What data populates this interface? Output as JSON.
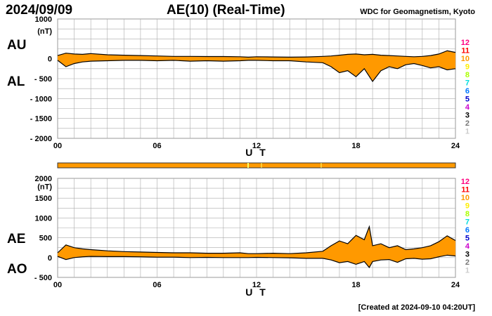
{
  "header": {
    "date": "2024/09/09",
    "title": "AE(10) (Real-Time)",
    "org": "WDC for Geomagnetism, Kyoto",
    "created": "[Created at 2024-09-10 04:20UT]"
  },
  "legend": {
    "items": [
      "12",
      "11",
      "10",
      "9",
      "8",
      "7",
      "6",
      "5",
      "4",
      "3",
      "2",
      "1"
    ],
    "colors": [
      "#ff0080",
      "#ff0000",
      "#ff9900",
      "#ffee00",
      "#aaff00",
      "#00dddd",
      "#0077ff",
      "#0000cc",
      "#cc00cc",
      "#000000",
      "#777777",
      "#cccccc"
    ]
  },
  "chart_data": [
    {
      "type": "area",
      "id": "au_al",
      "ylabel_unit": "(nT)",
      "ylim": [
        -2000,
        1000
      ],
      "yticks": [
        "1000",
        "(nT)",
        "0",
        "- 500",
        "- 1000",
        "- 1500",
        "- 2000"
      ],
      "xlim": [
        0,
        24
      ],
      "xticks": [
        "00",
        "06",
        "12",
        "18",
        "24"
      ],
      "xlabel": "U T",
      "upper_label": "AU",
      "lower_label": "AL",
      "fill_color": "#ff9900",
      "series": [
        {
          "name": "AU",
          "x": [
            0,
            0.5,
            1,
            1.5,
            2,
            3,
            4,
            5,
            6,
            7,
            8,
            9,
            10,
            11,
            11.5,
            12,
            13,
            14,
            15,
            16,
            16.5,
            17,
            17.5,
            18,
            18.5,
            19,
            19.5,
            20,
            20.5,
            21,
            21.5,
            22,
            22.5,
            23,
            23.5,
            24
          ],
          "y": [
            80,
            140,
            120,
            110,
            130,
            100,
            90,
            80,
            70,
            60,
            60,
            55,
            55,
            50,
            40,
            50,
            45,
            40,
            45,
            60,
            70,
            90,
            110,
            120,
            100,
            110,
            90,
            80,
            70,
            60,
            50,
            60,
            80,
            120,
            200,
            160
          ]
        },
        {
          "name": "AL",
          "x": [
            0,
            0.5,
            1,
            1.5,
            2,
            3,
            4,
            5,
            6,
            7,
            8,
            9,
            10,
            11,
            11.5,
            12,
            13,
            14,
            15,
            16,
            16.5,
            17,
            17.5,
            18,
            18.5,
            19,
            19.5,
            20,
            20.5,
            21,
            21.5,
            22,
            22.5,
            23,
            23.5,
            24
          ],
          "y": [
            -40,
            -200,
            -120,
            -80,
            -60,
            -50,
            -40,
            -40,
            -50,
            -40,
            -60,
            -50,
            -60,
            -50,
            -40,
            -40,
            -50,
            -50,
            -80,
            -100,
            -200,
            -350,
            -300,
            -450,
            -250,
            -570,
            -300,
            -200,
            -250,
            -150,
            -120,
            -170,
            -230,
            -200,
            -280,
            -250
          ]
        }
      ]
    },
    {
      "type": "area",
      "id": "ae_ao",
      "ylabel_unit": "(nT)",
      "ylim": [
        -500,
        2000
      ],
      "yticks": [
        "2000",
        "(nT)",
        "1500",
        "1000",
        "500",
        "0",
        "- 500"
      ],
      "xlim": [
        0,
        24
      ],
      "xticks": [
        "00",
        "06",
        "12",
        "18",
        "24"
      ],
      "xlabel": "U T",
      "upper_label": "AE",
      "lower_label": "AO",
      "fill_color": "#ff9900",
      "series": [
        {
          "name": "AE",
          "x": [
            0,
            0.5,
            1,
            1.5,
            2,
            3,
            4,
            5,
            6,
            7,
            8,
            9,
            10,
            11,
            11.5,
            12,
            13,
            14,
            15,
            16,
            16.5,
            17,
            17.5,
            18,
            18.5,
            18.8,
            19,
            19.5,
            20,
            20.5,
            21,
            21.5,
            22,
            22.5,
            23,
            23.5,
            24
          ],
          "y": [
            120,
            320,
            250,
            220,
            200,
            170,
            150,
            140,
            130,
            120,
            120,
            110,
            110,
            120,
            100,
            100,
            110,
            100,
            120,
            160,
            300,
            420,
            350,
            560,
            450,
            780,
            300,
            350,
            250,
            300,
            200,
            220,
            250,
            300,
            400,
            550,
            430
          ]
        },
        {
          "name": "AO",
          "x": [
            0,
            0.5,
            1,
            1.5,
            2,
            3,
            4,
            5,
            6,
            7,
            8,
            9,
            10,
            11,
            11.5,
            12,
            13,
            14,
            15,
            16,
            16.5,
            17,
            17.5,
            18,
            18.5,
            18.8,
            19,
            19.5,
            20,
            20.5,
            21,
            21.5,
            22,
            22.5,
            23,
            23.5,
            24
          ],
          "y": [
            30,
            -50,
            0,
            20,
            30,
            25,
            25,
            20,
            10,
            10,
            0,
            5,
            0,
            0,
            0,
            5,
            0,
            -5,
            -20,
            -20,
            -60,
            -130,
            -100,
            -170,
            -100,
            -250,
            -100,
            -60,
            -50,
            -120,
            -30,
            -20,
            -40,
            -30,
            20,
            60,
            40
          ]
        }
      ]
    }
  ]
}
